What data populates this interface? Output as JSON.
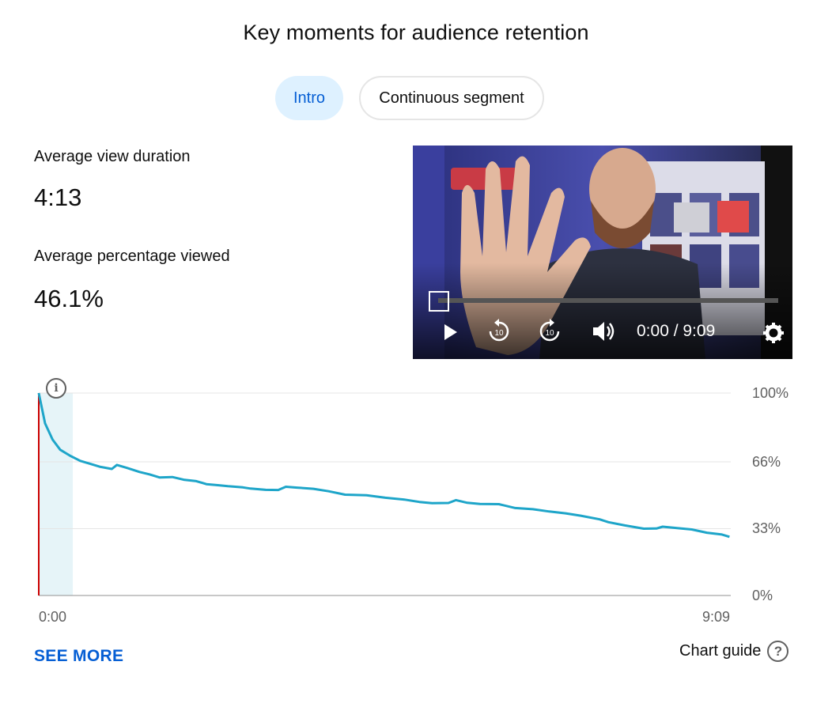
{
  "title": "Key moments for audience retention",
  "tabs": [
    {
      "label": "Intro",
      "selected": true
    },
    {
      "label": "Continuous segment",
      "selected": false
    }
  ],
  "stats": [
    {
      "label": "Average view duration",
      "value": "4:13"
    },
    {
      "label": "Average percentage viewed",
      "value": "46.1%"
    }
  ],
  "player": {
    "time": "0:00 / 9:09",
    "controls": [
      "play-icon",
      "rewind-10-icon",
      "forward-10-icon",
      "volume-icon",
      "settings-gear-icon"
    ]
  },
  "chart_data": {
    "type": "line",
    "ylim": [
      0,
      100
    ],
    "y_ticks": [
      "100%",
      "66%",
      "33%",
      "0%"
    ],
    "x_tick_labels": [
      "0:00",
      "9:09"
    ],
    "x_range_seconds": [
      0,
      549
    ],
    "intro_region_seconds": [
      0,
      27
    ],
    "grid": true,
    "series": [
      {
        "color": "#1ea5c9",
        "points": [
          [
            0,
            100
          ],
          [
            5,
            85
          ],
          [
            11,
            77
          ],
          [
            17,
            72
          ],
          [
            25,
            69
          ],
          [
            33,
            66.5
          ],
          [
            41,
            65
          ],
          [
            49,
            63.5
          ],
          [
            58,
            62.5
          ],
          [
            62,
            64.5
          ],
          [
            70,
            63
          ],
          [
            80,
            61
          ],
          [
            88,
            59.8
          ],
          [
            96,
            58.3
          ],
          [
            106,
            58.5
          ],
          [
            115,
            57.2
          ],
          [
            125,
            56.5
          ],
          [
            133,
            55
          ],
          [
            142,
            54.5
          ],
          [
            150,
            54
          ],
          [
            162,
            53.4
          ],
          [
            168,
            52.8
          ],
          [
            180,
            52.2
          ],
          [
            190,
            52.1
          ],
          [
            196,
            53.7
          ],
          [
            205,
            53.3
          ],
          [
            218,
            52.7
          ],
          [
            230,
            51.5
          ],
          [
            243,
            49.8
          ],
          [
            260,
            49.5
          ],
          [
            275,
            48.3
          ],
          [
            290,
            47.4
          ],
          [
            302,
            46.2
          ],
          [
            312,
            45.6
          ],
          [
            325,
            45.7
          ],
          [
            331,
            47.1
          ],
          [
            340,
            45.8
          ],
          [
            350,
            45.2
          ],
          [
            365,
            45.1
          ],
          [
            378,
            43.2
          ],
          [
            392,
            42.6
          ],
          [
            405,
            41.5
          ],
          [
            418,
            40.6
          ],
          [
            430,
            39.4
          ],
          [
            445,
            37.6
          ],
          [
            452,
            36.2
          ],
          [
            465,
            34.6
          ],
          [
            480,
            33
          ],
          [
            490,
            33.1
          ],
          [
            495,
            34
          ],
          [
            508,
            33.2
          ],
          [
            518,
            32.6
          ],
          [
            530,
            31
          ],
          [
            542,
            30.1
          ],
          [
            548,
            29
          ]
        ]
      }
    ]
  },
  "links": {
    "see_more": "SEE MORE",
    "chart_guide": "Chart guide",
    "help_glyph": "?",
    "info_glyph": "i"
  },
  "colors": {
    "accent": "#065fd4",
    "tab_selected_bg": "#def1ff",
    "line": "#1ea5c9",
    "marker": "#cc0000"
  }
}
